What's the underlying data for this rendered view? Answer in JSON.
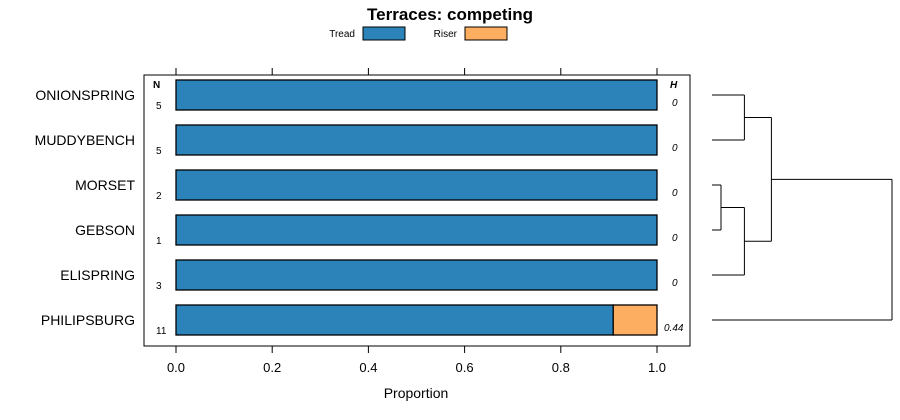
{
  "chart_data": {
    "type": "bar",
    "orientation": "horizontal",
    "stacked": true,
    "title": "Terraces: competing",
    "xlabel": "Proportion",
    "ylabel": "",
    "xlim": [
      0,
      1
    ],
    "x_ticks": [
      "0.0",
      "0.2",
      "0.4",
      "0.6",
      "0.8",
      "1.0"
    ],
    "x_tick_values": [
      0,
      0.2,
      0.4,
      0.6,
      0.8,
      1.0
    ],
    "legend_position": "top-center",
    "n_header": "N",
    "h_header": "H",
    "categories": [
      "ONIONSPRING",
      "MUDDYBENCH",
      "MORSET",
      "GEBSON",
      "ELISPRING",
      "PHILIPSBURG"
    ],
    "n_values": [
      "5",
      "5",
      "2",
      "1",
      "3",
      "11"
    ],
    "h_values": [
      "0",
      "0",
      "0",
      "0",
      "0",
      "0.44"
    ],
    "series": [
      {
        "name": "Tread",
        "color": "#2B83BA",
        "values": [
          1.0,
          1.0,
          1.0,
          1.0,
          1.0,
          0.909
        ]
      },
      {
        "name": "Riser",
        "color": "#FDAE61",
        "values": [
          0.0,
          0.0,
          0.0,
          0.0,
          0.0,
          0.091
        ]
      }
    ],
    "dendrogram": {
      "description": "hierarchical clustering of rows",
      "merges": [
        {
          "left": "MORSET",
          "right": "GEBSON",
          "height": 0.05
        },
        {
          "left": "ONIONSPRING",
          "right": "MUDDYBENCH",
          "height": 0.18
        },
        {
          "left": "MORSET+GEBSON",
          "right": "ELISPRING",
          "height": 0.18
        },
        {
          "left": "ONIONSPRING+MUDDYBENCH",
          "right": "MORSET+GEBSON+ELISPRING",
          "height": 0.33
        },
        {
          "left": "cluster-A",
          "right": "PHILIPSBURG",
          "height": 1.0
        }
      ]
    }
  }
}
